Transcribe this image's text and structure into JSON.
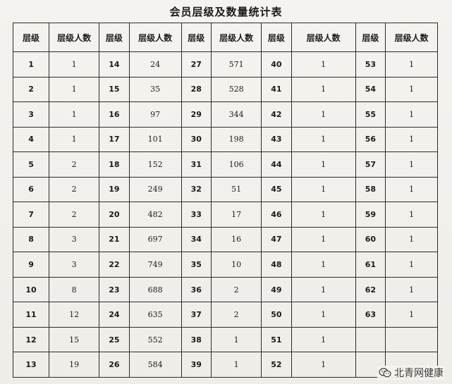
{
  "title": "会员层级及数量统计表",
  "headers": [
    "层级",
    "层级人数",
    "层级",
    "层级人数",
    "层级",
    "层级人数",
    "层级",
    "层级人数",
    "层级",
    "层级人数"
  ],
  "rows": [
    [
      "1",
      "1",
      "14",
      "24",
      "27",
      "571",
      "40",
      "1",
      "53",
      "1"
    ],
    [
      "2",
      "1",
      "15",
      "35",
      "28",
      "528",
      "41",
      "1",
      "54",
      "1"
    ],
    [
      "3",
      "1",
      "16",
      "97",
      "29",
      "344",
      "42",
      "1",
      "55",
      "1"
    ],
    [
      "4",
      "1",
      "17",
      "101",
      "30",
      "198",
      "43",
      "1",
      "56",
      "1"
    ],
    [
      "5",
      "2",
      "18",
      "152",
      "31",
      "106",
      "44",
      "1",
      "57",
      "1"
    ],
    [
      "6",
      "2",
      "19",
      "249",
      "32",
      "51",
      "45",
      "1",
      "58",
      "1"
    ],
    [
      "7",
      "2",
      "20",
      "482",
      "33",
      "17",
      "46",
      "1",
      "59",
      "1"
    ],
    [
      "8",
      "3",
      "21",
      "697",
      "34",
      "16",
      "47",
      "1",
      "60",
      "1"
    ],
    [
      "9",
      "3",
      "22",
      "749",
      "35",
      "10",
      "48",
      "1",
      "61",
      "1"
    ],
    [
      "10",
      "8",
      "23",
      "688",
      "36",
      "2",
      "49",
      "1",
      "62",
      "1"
    ],
    [
      "11",
      "12",
      "24",
      "635",
      "37",
      "2",
      "50",
      "1",
      "63",
      "1"
    ],
    [
      "12",
      "15",
      "25",
      "552",
      "38",
      "1",
      "51",
      "1",
      "",
      ""
    ],
    [
      "13",
      "19",
      "26",
      "584",
      "39",
      "1",
      "52",
      "1",
      "",
      ""
    ]
  ],
  "watermark": {
    "text": "北青网健康",
    "icon": "wechat-icon"
  }
}
